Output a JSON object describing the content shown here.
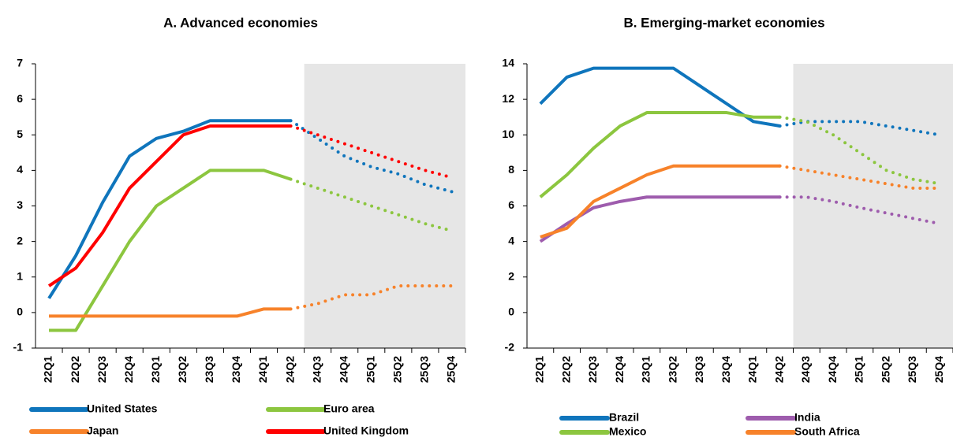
{
  "chart_data": [
    {
      "type": "line",
      "title": "A. Advanced economies",
      "categories": [
        "22Q1",
        "22Q2",
        "22Q3",
        "22Q4",
        "23Q1",
        "23Q2",
        "23Q3",
        "23Q4",
        "24Q1",
        "24Q2",
        "24Q3",
        "24Q4",
        "25Q1",
        "25Q2",
        "25Q3",
        "25Q4"
      ],
      "forecast_from": "24Q3",
      "ylim": [
        -1,
        7
      ],
      "yticks": [
        -1,
        0,
        1,
        2,
        3,
        4,
        5,
        6,
        7
      ],
      "series": [
        {
          "name": "United States",
          "color": "#0f75bc",
          "values": [
            0.4,
            1.6,
            3.1,
            4.4,
            4.9,
            5.1,
            5.4,
            5.4,
            5.4,
            5.4,
            4.9,
            4.4,
            4.1,
            3.9,
            3.6,
            3.4
          ]
        },
        {
          "name": "Euro area",
          "color": "#8cc63f",
          "values": [
            -0.5,
            -0.5,
            0.75,
            2,
            3,
            3.5,
            4,
            4,
            4,
            3.75,
            3.5,
            3.25,
            3,
            2.75,
            2.5,
            2.3
          ]
        },
        {
          "name": "Japan",
          "color": "#f7822a",
          "values": [
            -0.1,
            -0.1,
            -0.1,
            -0.1,
            -0.1,
            -0.1,
            -0.1,
            -0.1,
            0.1,
            0.1,
            0.25,
            0.5,
            0.5,
            0.75,
            0.75,
            0.75
          ]
        },
        {
          "name": "United Kingdom",
          "color": "#ff0000",
          "values": [
            0.75,
            1.25,
            2.25,
            3.5,
            4.25,
            5,
            5.25,
            5.25,
            5.25,
            5.25,
            5,
            4.75,
            4.5,
            4.25,
            4,
            3.8
          ]
        }
      ]
    },
    {
      "type": "line",
      "title": "B. Emerging-market economies",
      "categories": [
        "22Q1",
        "22Q2",
        "22Q3",
        "22Q4",
        "23Q1",
        "23Q2",
        "23Q3",
        "23Q4",
        "24Q1",
        "24Q2",
        "24Q3",
        "24Q4",
        "25Q1",
        "25Q2",
        "25Q3",
        "25Q4"
      ],
      "forecast_from": "24Q3",
      "ylim": [
        -2,
        14
      ],
      "yticks": [
        -2,
        0,
        2,
        4,
        6,
        8,
        10,
        12,
        14
      ],
      "series": [
        {
          "name": "Brazil",
          "color": "#0f75bc",
          "values": [
            11.75,
            13.25,
            13.75,
            13.75,
            13.75,
            13.75,
            12.75,
            11.75,
            10.75,
            10.5,
            10.75,
            10.75,
            10.75,
            10.5,
            10.25,
            10
          ]
        },
        {
          "name": "India",
          "color": "#9e5cad",
          "values": [
            4,
            5,
            5.9,
            6.25,
            6.5,
            6.5,
            6.5,
            6.5,
            6.5,
            6.5,
            6.5,
            6.25,
            5.9,
            5.6,
            5.3,
            5
          ]
        },
        {
          "name": "Mexico",
          "color": "#8cc63f",
          "values": [
            6.5,
            7.75,
            9.25,
            10.5,
            11.25,
            11.25,
            11.25,
            11.25,
            11,
            11,
            10.75,
            10,
            9,
            8,
            7.5,
            7.25
          ]
        },
        {
          "name": "South Africa",
          "color": "#f7822a",
          "values": [
            4.25,
            4.75,
            6.25,
            7,
            7.75,
            8.25,
            8.25,
            8.25,
            8.25,
            8.25,
            8,
            7.75,
            7.5,
            7.25,
            7,
            7
          ]
        }
      ]
    }
  ]
}
